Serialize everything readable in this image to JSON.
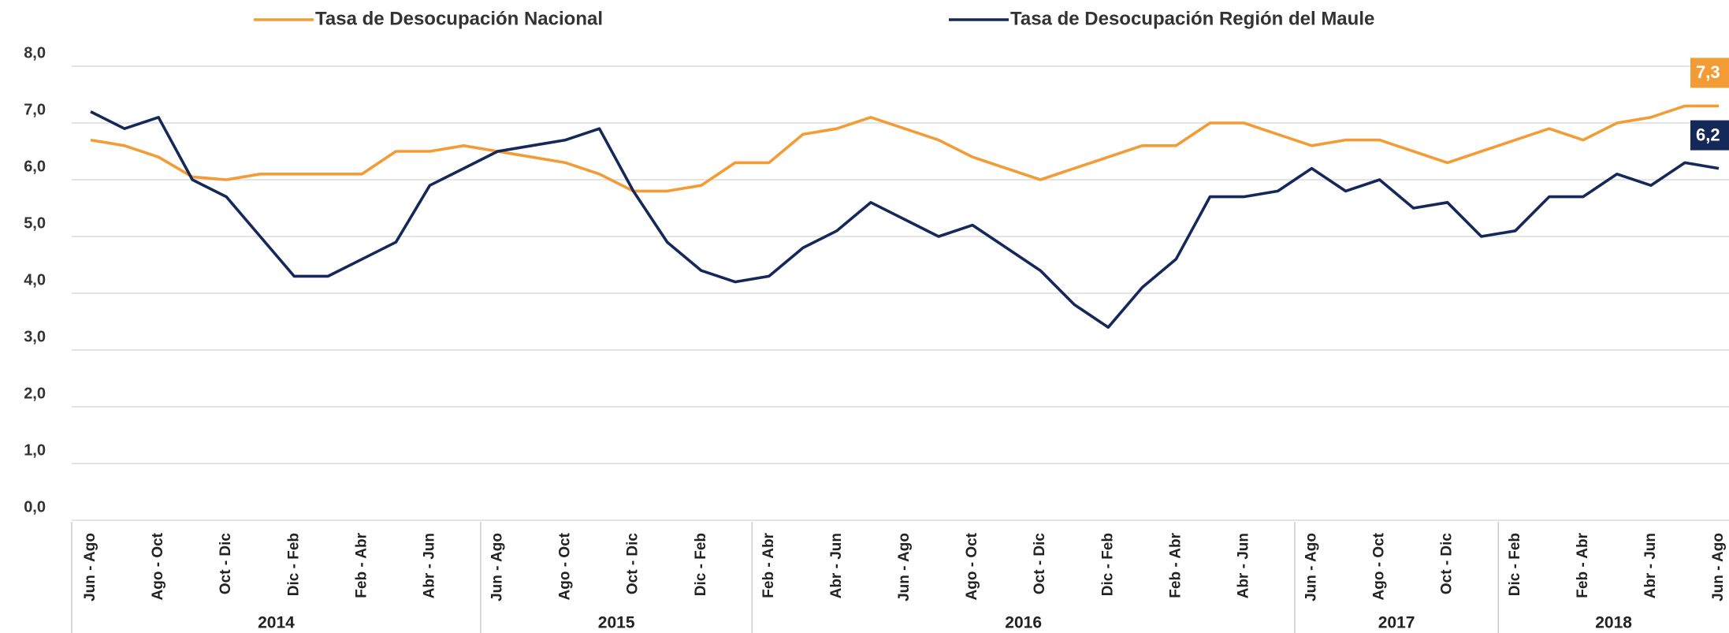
{
  "chart_data": {
    "type": "line",
    "categories": [
      "Jun - Ago",
      null,
      "Ago - Oct",
      null,
      "Oct - Dic",
      null,
      "Dic - Feb",
      null,
      "Feb - Abr",
      null,
      "Abr - Jun",
      null,
      "Jun - Ago",
      null,
      "Ago - Oct",
      null,
      "Oct - Dic",
      null,
      "Dic - Feb",
      null,
      "Feb - Abr",
      null,
      "Abr - Jun",
      null,
      "Jun - Ago",
      null,
      "Ago - Oct",
      null,
      "Oct - Dic",
      null,
      "Dic - Feb",
      null,
      "Feb - Abr",
      null,
      "Abr - Jun",
      null,
      "Jun - Ago",
      null,
      "Ago - Oct",
      null,
      "Oct - Dic",
      null,
      "Dic - Feb",
      null,
      "Feb - Abr",
      null,
      "Abr - Jun",
      null,
      "Jun - Ago"
    ],
    "groups": [
      {
        "label": "2014",
        "span": 12
      },
      {
        "label": "2015",
        "span": 8
      },
      {
        "label": "2016",
        "span": 16
      },
      {
        "label": "2017",
        "span": 6
      },
      {
        "label": "2018",
        "span": 7
      }
    ],
    "series": [
      {
        "name": "Tasa de Desocupación Nacional",
        "color": "#f39c36",
        "values": [
          6.7,
          6.6,
          6.4,
          6.05,
          6.0,
          6.1,
          6.1,
          6.1,
          6.1,
          6.5,
          6.5,
          6.6,
          6.5,
          6.4,
          6.3,
          6.1,
          5.8,
          5.8,
          5.9,
          6.3,
          6.3,
          6.8,
          6.9,
          7.1,
          6.9,
          6.7,
          6.4,
          6.2,
          6.0,
          6.2,
          6.4,
          6.6,
          6.6,
          7.0,
          7.0,
          6.8,
          6.6,
          6.7,
          6.7,
          6.5,
          6.3,
          6.5,
          6.7,
          6.9,
          6.7,
          7.0,
          7.1,
          7.3,
          7.3
        ],
        "value_labels": [
          null,
          null,
          null,
          null,
          null,
          null,
          null,
          null,
          null,
          null,
          null,
          null,
          null,
          null,
          null,
          null,
          null,
          null,
          null,
          null,
          null,
          null,
          null,
          null,
          null,
          null,
          null,
          null,
          null,
          null,
          null,
          null,
          null,
          null,
          null,
          null,
          null,
          null,
          null,
          null,
          null,
          null,
          null,
          null,
          null,
          null,
          null,
          null,
          "7,3"
        ]
      },
      {
        "name": "Tasa de Desocupación Región del Maule",
        "color": "#14285a",
        "values": [
          7.2,
          6.9,
          7.1,
          6.0,
          5.7,
          5.0,
          4.3,
          4.3,
          4.6,
          4.9,
          5.9,
          6.2,
          6.5,
          6.6,
          6.7,
          6.9,
          5.8,
          4.9,
          4.4,
          4.2,
          4.3,
          4.8,
          5.1,
          5.6,
          5.3,
          5.0,
          5.2,
          4.8,
          4.4,
          3.8,
          3.4,
          4.1,
          4.6,
          5.7,
          5.7,
          5.8,
          6.2,
          5.8,
          6.0,
          5.5,
          5.6,
          5.0,
          5.1,
          5.7,
          5.7,
          6.1,
          5.9,
          6.3,
          6.2
        ],
        "value_labels": [
          null,
          null,
          null,
          null,
          null,
          null,
          null,
          null,
          null,
          null,
          null,
          null,
          null,
          null,
          null,
          null,
          null,
          null,
          null,
          null,
          null,
          null,
          null,
          null,
          null,
          null,
          null,
          null,
          null,
          null,
          null,
          null,
          null,
          null,
          null,
          null,
          null,
          null,
          null,
          null,
          null,
          null,
          null,
          null,
          null,
          null,
          null,
          null,
          "6,2"
        ]
      }
    ],
    "ylim": [
      0,
      8
    ],
    "yticks": [
      {
        "value": 0,
        "label": "0,0"
      },
      {
        "value": 1,
        "label": "1,0"
      },
      {
        "value": 2,
        "label": "2,0"
      },
      {
        "value": 3,
        "label": "3,0"
      },
      {
        "value": 4,
        "label": "4,0"
      },
      {
        "value": 5,
        "label": "5,0"
      },
      {
        "value": 6,
        "label": "6,0"
      },
      {
        "value": 7,
        "label": "7,0"
      },
      {
        "value": 8,
        "label": "8,0"
      }
    ],
    "grid": true
  }
}
